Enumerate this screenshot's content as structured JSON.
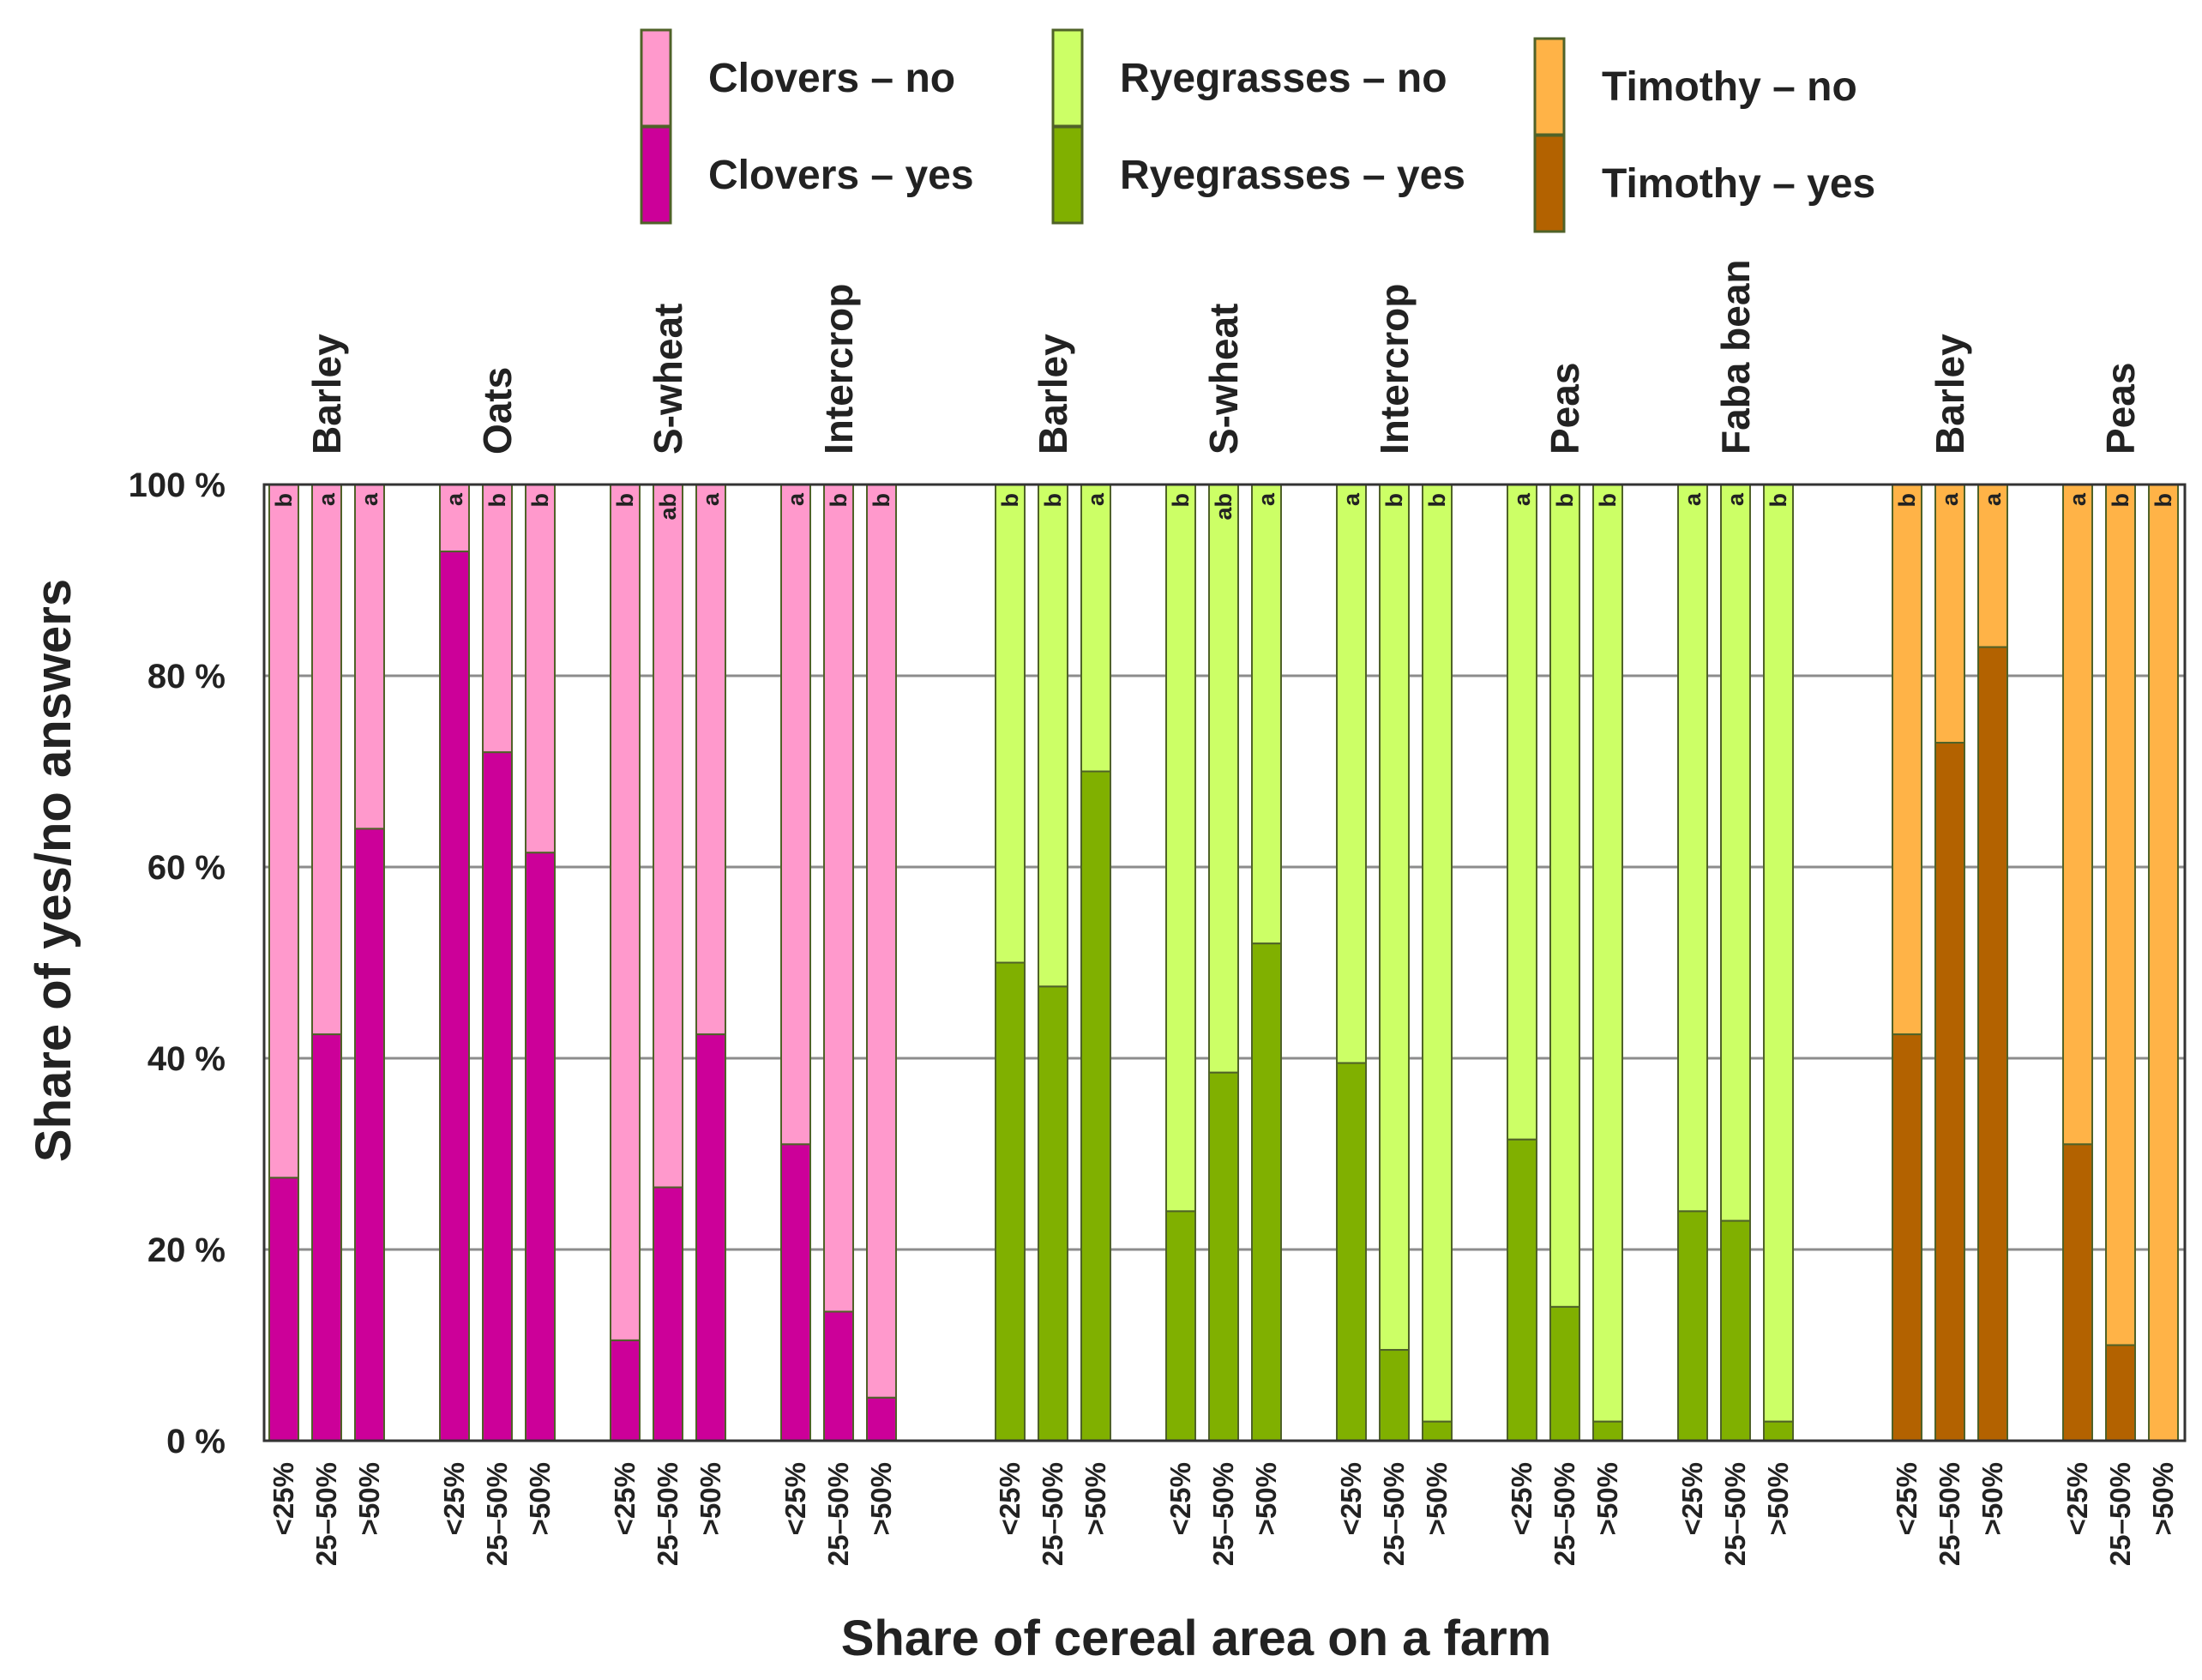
{
  "chart_data": {
    "type": "bar",
    "stacked": true,
    "xlabel": "Share of cereal area on a farm",
    "ylabel": "Share of yes/no answers",
    "ylim": [
      0,
      100
    ],
    "yticks": [
      {
        "value": 0,
        "label": "0 %"
      },
      {
        "value": 20,
        "label": "20 %"
      },
      {
        "value": 40,
        "label": "40 %"
      },
      {
        "value": 60,
        "label": "60 %"
      },
      {
        "value": 80,
        "label": "80 %"
      },
      {
        "value": 100,
        "label": "100 %"
      }
    ],
    "grid": true,
    "categories": [
      "<25%",
      "25–50%",
      ">50%"
    ],
    "legend": [
      {
        "label": "Clovers – no",
        "color": "#ff99cc"
      },
      {
        "label": "Clovers – yes",
        "color": "#cc0099"
      },
      {
        "label": "Ryegrasses – no",
        "color": "#ccff66"
      },
      {
        "label": "Ryegrasses – yes",
        "color": "#80b000"
      },
      {
        "label": "Timothy – no",
        "color": "#ffb347"
      },
      {
        "label": "Timothy – yes",
        "color": "#b36200"
      }
    ],
    "panels": [
      {
        "name": "Clovers",
        "yes_color": "#cc0099",
        "no_color": "#ff99cc",
        "groups": [
          {
            "label": "Barley",
            "yes": [
              27.5,
              42.5,
              64
            ],
            "sig": [
              "b",
              "a",
              "a"
            ]
          },
          {
            "label": "Oats",
            "yes": [
              93,
              72,
              61.5
            ],
            "sig": [
              "a",
              "b",
              "b"
            ]
          },
          {
            "label": "S-wheat",
            "yes": [
              10.5,
              26.5,
              42.5
            ],
            "sig": [
              "b",
              "ab",
              "a"
            ]
          },
          {
            "label": "Intercrop",
            "yes": [
              31,
              13.5,
              4.5
            ],
            "sig": [
              "a",
              "b",
              "b"
            ]
          }
        ]
      },
      {
        "name": "Ryegrasses",
        "yes_color": "#80b000",
        "no_color": "#ccff66",
        "groups": [
          {
            "label": "Barley",
            "yes": [
              50,
              47.5,
              70
            ],
            "sig": [
              "b",
              "b",
              "a"
            ]
          },
          {
            "label": "S-wheat",
            "yes": [
              24,
              38.5,
              52
            ],
            "sig": [
              "b",
              "ab",
              "a"
            ]
          },
          {
            "label": "Intercrop",
            "yes": [
              39.5,
              9.5,
              2
            ],
            "sig": [
              "a",
              "b",
              "b"
            ]
          },
          {
            "label": "Peas",
            "yes": [
              31.5,
              14,
              2
            ],
            "sig": [
              "a",
              "b",
              "b"
            ]
          },
          {
            "label": "Faba bean",
            "yes": [
              24,
              23,
              2
            ],
            "sig": [
              "a",
              "a",
              "b"
            ]
          }
        ]
      },
      {
        "name": "Timothy",
        "yes_color": "#b36200",
        "no_color": "#ffb347",
        "groups": [
          {
            "label": "Barley",
            "yes": [
              42.5,
              73,
              83
            ],
            "sig": [
              "b",
              "a",
              "a"
            ]
          },
          {
            "label": "Peas",
            "yes": [
              31,
              10,
              0
            ],
            "sig": [
              "a",
              "b",
              "b"
            ]
          }
        ]
      }
    ]
  }
}
